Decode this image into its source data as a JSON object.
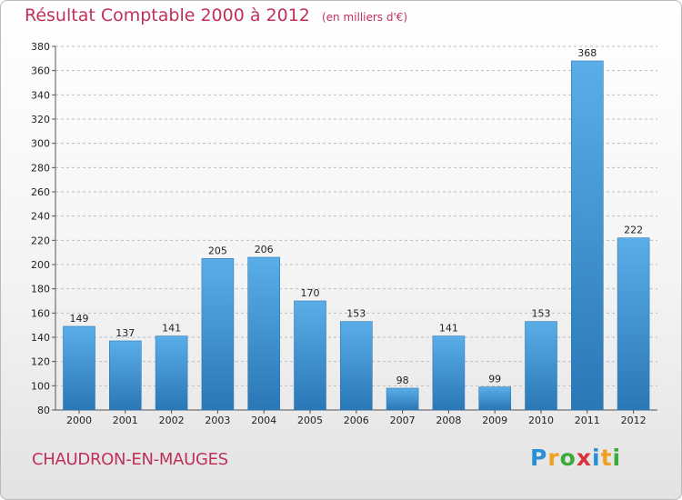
{
  "title": "Résultat Comptable 2000 à 2012",
  "unit_note": "(en milliers d'€)",
  "commune": "CHAUDRON-EN-MAUGES",
  "logo": {
    "text": "Proxiti",
    "letters": [
      {
        "ch": "P",
        "color": "#2a8fd6"
      },
      {
        "ch": "r",
        "color": "#f0a020"
      },
      {
        "ch": "o",
        "color": "#3aab3a"
      },
      {
        "ch": "x",
        "color": "#d8323c"
      },
      {
        "ch": "i",
        "color": "#2a8fd6"
      },
      {
        "ch": "t",
        "color": "#f0a020"
      },
      {
        "ch": "i",
        "color": "#3aab3a"
      }
    ]
  },
  "colors": {
    "title": "#c0305a",
    "bar_top": "#5aaee8",
    "bar_bottom": "#2a77b6",
    "grid": "#bdbdbd"
  },
  "chart_data": {
    "type": "bar",
    "title": "Résultat Comptable 2000 à 2012",
    "xlabel": "",
    "ylabel": "",
    "categories": [
      "2000",
      "2001",
      "2002",
      "2003",
      "2004",
      "2005",
      "2006",
      "2007",
      "2008",
      "2009",
      "2010",
      "2011",
      "2012"
    ],
    "values": [
      149,
      137,
      141,
      205,
      206,
      170,
      153,
      98,
      141,
      99,
      153,
      368,
      222
    ],
    "ylim": [
      80,
      380
    ],
    "yticks": [
      80,
      100,
      120,
      140,
      160,
      180,
      200,
      220,
      240,
      260,
      280,
      300,
      320,
      340,
      360,
      380
    ],
    "grid": true
  }
}
